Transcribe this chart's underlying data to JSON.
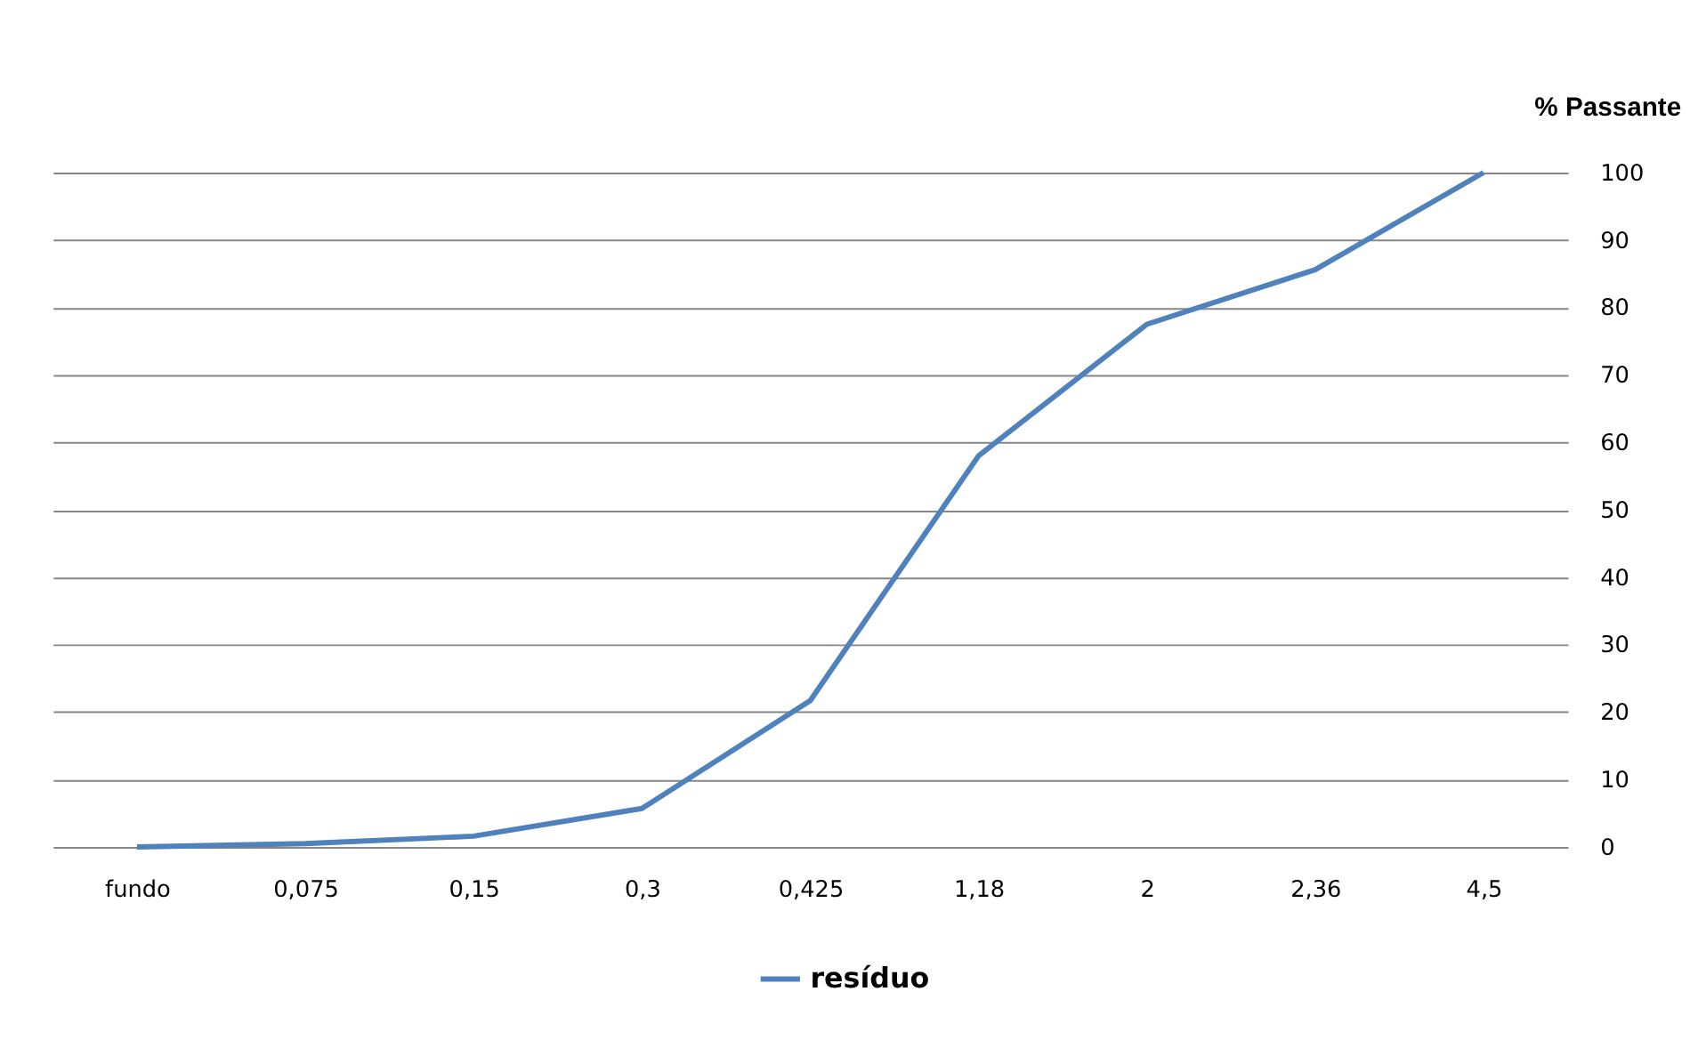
{
  "chart_data": {
    "type": "line",
    "ylabel": "% Passante",
    "categories": [
      "fundo",
      "0,075",
      "0,15",
      "0,3",
      "0,425",
      "1,18",
      "2",
      "2,36",
      "4,5"
    ],
    "series": [
      {
        "name": "resíduo",
        "color": "#4f81bd",
        "values": [
          0,
          0.5,
          1.6,
          5.7,
          21.7,
          58,
          77.5,
          85.6,
          100
        ]
      }
    ],
    "ylim": [
      0,
      100
    ],
    "yticks": [
      0,
      10,
      20,
      30,
      40,
      50,
      60,
      70,
      80,
      90,
      100
    ],
    "grid": "y",
    "legend": "bottom",
    "marker": "none",
    "line_style": "solid"
  }
}
